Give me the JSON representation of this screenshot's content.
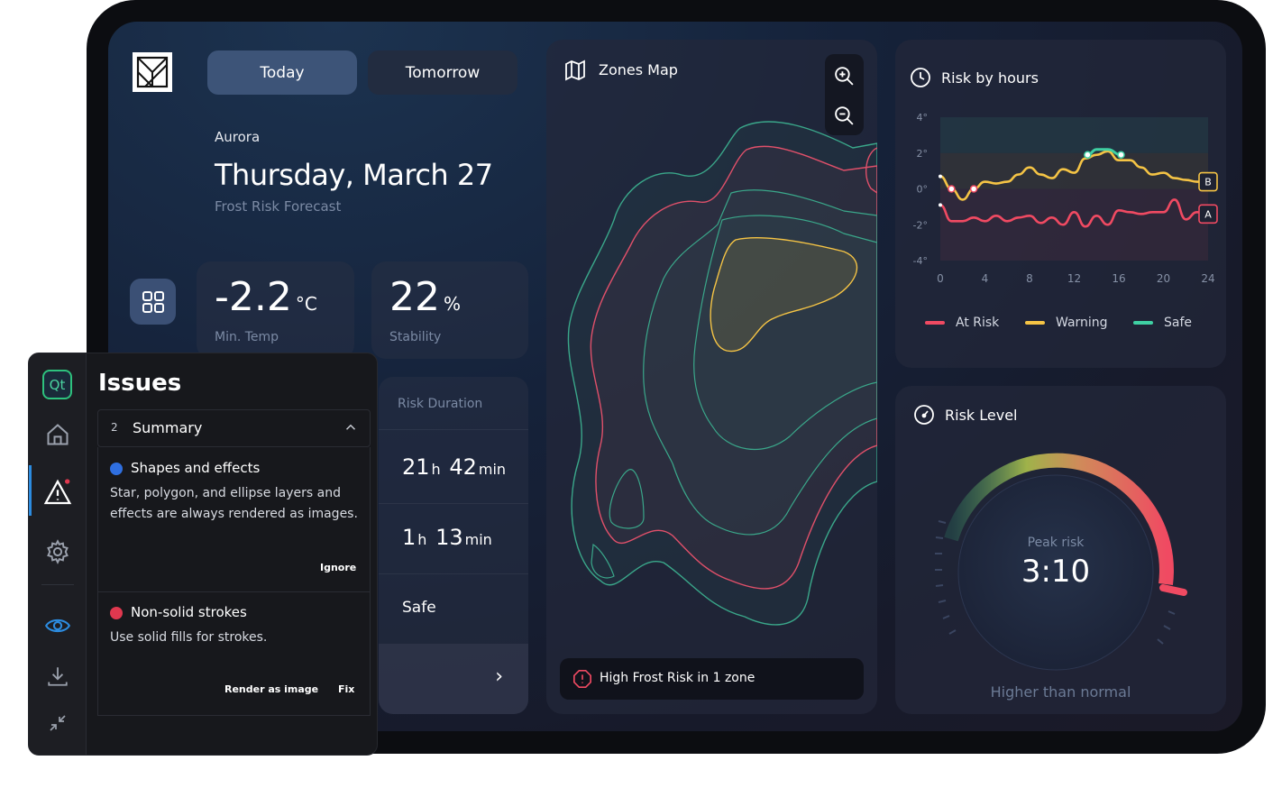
{
  "dashboard": {
    "tabs": [
      {
        "label": "Today"
      },
      {
        "label": "Tomorrow"
      }
    ],
    "location": "Aurora",
    "date": "Thursday, March 27",
    "subtitle": "Frost Risk Forecast",
    "temp": {
      "value": "-2.2",
      "unit": "°C",
      "label": "Min. Temp"
    },
    "stability": {
      "value": "22",
      "unit": "%",
      "label": "Stability"
    },
    "duration": {
      "title": "Risk Duration",
      "rows": [
        {
          "h": "21",
          "hu": "h",
          "m": "42",
          "mu": "min"
        },
        {
          "h": "1",
          "hu": "h",
          "m": "13",
          "mu": "min"
        }
      ],
      "safe_label": "Safe",
      "next": "›"
    },
    "map": {
      "title": "Zones Map",
      "alert": "High Frost Risk in 1 zone"
    },
    "hours": {
      "title": "Risk by hours",
      "legend": [
        "At Risk",
        "Warning",
        "Safe"
      ]
    },
    "level": {
      "title": "Risk Level",
      "peak_label": "Peak risk",
      "peak_value": "3:10",
      "note": "Higher than normal"
    }
  },
  "chart_data": {
    "type": "line",
    "x": [
      0,
      4,
      8,
      12,
      16,
      20,
      24
    ],
    "xticks": [
      "0",
      "4",
      "8",
      "12",
      "16",
      "20",
      "24"
    ],
    "yticks": [
      "4°",
      "2°",
      "0°",
      "-2°",
      "-4°"
    ],
    "ylim": [
      -4,
      4
    ],
    "xlim": [
      0,
      24
    ],
    "series": [
      {
        "name": "Warning",
        "color": "#f5c445",
        "end_tag": "B",
        "x": [
          0,
          1,
          2,
          3,
          4,
          5,
          6,
          7,
          8,
          9,
          10,
          11,
          12,
          13,
          14,
          15,
          16,
          17,
          18,
          19,
          20,
          21,
          22,
          23,
          24
        ],
        "y": [
          0.7,
          0.0,
          -0.6,
          0.0,
          0.4,
          0.3,
          0.4,
          0.8,
          1.2,
          0.8,
          0.6,
          1.1,
          0.9,
          1.7,
          1.9,
          2.1,
          1.6,
          1.6,
          1.2,
          0.8,
          0.9,
          0.6,
          0.5,
          0.4,
          0.4
        ]
      },
      {
        "name": "At Risk",
        "color": "#f04a62",
        "end_tag": "A",
        "x": [
          0,
          1,
          2,
          3,
          4,
          5,
          6,
          7,
          8,
          9,
          10,
          11,
          12,
          13,
          14,
          15,
          16,
          17,
          18,
          19,
          20,
          21,
          22,
          23,
          24
        ],
        "y": [
          -0.9,
          -1.8,
          -1.8,
          -1.6,
          -1.8,
          -1.5,
          -1.8,
          -1.6,
          -1.5,
          -1.9,
          -1.6,
          -2.0,
          -1.3,
          -2.1,
          -1.5,
          -2.0,
          -1.2,
          -1.3,
          -1.4,
          -1.3,
          -1.3,
          -0.6,
          -1.7,
          -1.3,
          -1.4
        ]
      }
    ],
    "safe_segment": {
      "x": [
        13.2,
        14,
        15,
        16.2
      ],
      "y": [
        1.9,
        2.2,
        2.2,
        1.9
      ],
      "color": "#3fd0a3"
    },
    "markers": [
      {
        "series": "Warning",
        "x": 1,
        "y": 0.0
      },
      {
        "series": "Warning",
        "x": 3,
        "y": 0.0
      },
      {
        "series": "Safe",
        "x": 13.2,
        "y": 1.9
      },
      {
        "series": "Safe",
        "x": 16.2,
        "y": 1.9
      }
    ]
  },
  "issues": {
    "title": "Issues",
    "logo": "Qt",
    "summary": {
      "count": "2",
      "label": "Summary"
    },
    "items": [
      {
        "title": "Shapes and effects",
        "icon": "info-icon",
        "color": "#2f6fe0",
        "desc1": "Star, polygon, and ellipse layers and",
        "desc2": "effects are always rendered as images.",
        "actions": [
          "Ignore"
        ]
      },
      {
        "title": "Non-solid strokes",
        "icon": "error-icon",
        "color": "#e0384f",
        "desc1": "Use solid fills for strokes.",
        "desc2": "",
        "actions": [
          "Render as image",
          "Fix"
        ]
      }
    ]
  }
}
